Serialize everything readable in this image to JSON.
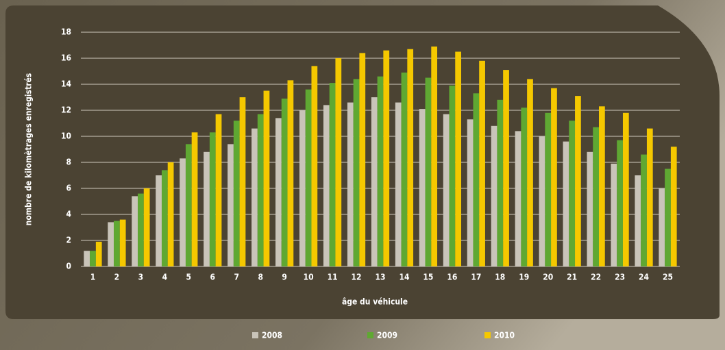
{
  "chart_data": {
    "type": "bar",
    "xlabel": "âge du véhicule",
    "ylabel": "nombre de kilomètrages enregistrés",
    "categories": [
      "1",
      "2",
      "3",
      "4",
      "5",
      "6",
      "7",
      "8",
      "9",
      "10",
      "11",
      "12",
      "13",
      "14",
      "15",
      "16",
      "17",
      "18",
      "19",
      "20",
      "21",
      "22",
      "23",
      "24",
      "25"
    ],
    "series": [
      {
        "name": "2008",
        "color": "#c9c4b9",
        "values": [
          1.2,
          3.4,
          5.4,
          7.0,
          8.3,
          8.8,
          9.4,
          10.6,
          11.4,
          12.0,
          12.4,
          12.6,
          13.0,
          12.6,
          12.1,
          11.7,
          11.3,
          10.8,
          10.4,
          10.0,
          9.6,
          8.8,
          7.9,
          7.0,
          6.0
        ]
      },
      {
        "name": "2009",
        "color": "#5fa832",
        "values": [
          1.2,
          3.5,
          5.6,
          7.4,
          9.4,
          10.3,
          11.2,
          11.7,
          12.9,
          13.6,
          14.1,
          14.4,
          14.6,
          14.9,
          14.5,
          13.9,
          13.3,
          12.8,
          12.2,
          11.8,
          11.2,
          10.7,
          9.7,
          8.6,
          7.5
        ]
      },
      {
        "name": "2010",
        "color": "#f5c800",
        "values": [
          1.9,
          3.6,
          6.0,
          8.0,
          10.3,
          11.7,
          13.0,
          13.5,
          14.3,
          15.4,
          16.0,
          16.4,
          16.6,
          16.7,
          16.9,
          16.5,
          15.8,
          15.1,
          14.4,
          13.7,
          13.1,
          12.3,
          11.8,
          10.6,
          9.2
        ]
      }
    ],
    "ylim": [
      0,
      18
    ],
    "yticks": [
      0,
      2,
      4,
      6,
      8,
      10,
      12,
      14,
      16,
      18
    ],
    "grid": true
  }
}
